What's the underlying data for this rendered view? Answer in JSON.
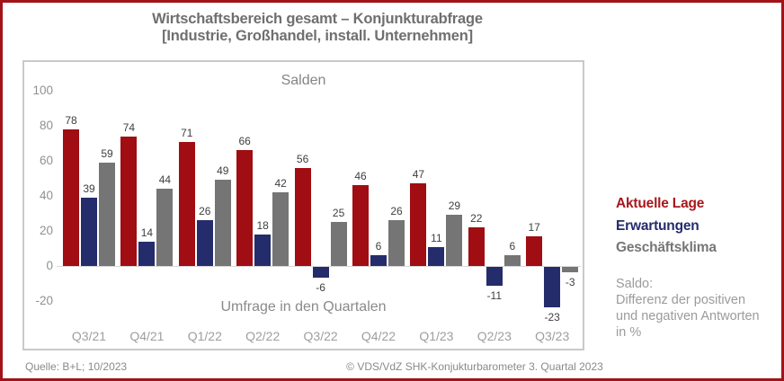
{
  "frame": {
    "border_color": "#a11318"
  },
  "title": {
    "line1": "Wirtschaftsbereich gesamt – Konjunkturabfrage",
    "line2": "[Industrie, Großhandel, install. Unternehmen]"
  },
  "chart_data": {
    "type": "bar",
    "title": "Salden",
    "xlabel": "Umfrage in den Quartalen",
    "categories": [
      "Q3/21",
      "Q4/21",
      "Q1/22",
      "Q2/22",
      "Q3/22",
      "Q4/22",
      "Q1/23",
      "Q2/23",
      "Q3/23"
    ],
    "series": [
      {
        "name": "Aktuelle Lage",
        "color": "#a00d12",
        "values": [
          78,
          74,
          71,
          66,
          56,
          46,
          47,
          22,
          17
        ]
      },
      {
        "name": "Erwartungen",
        "color": "#252c6b",
        "values": [
          39,
          14,
          26,
          18,
          -6,
          6,
          11,
          -11,
          -23
        ]
      },
      {
        "name": "Geschäftsklima",
        "color": "#757575",
        "values": [
          59,
          44,
          49,
          42,
          25,
          26,
          29,
          6,
          -3
        ]
      }
    ],
    "ylim": [
      -20,
      100
    ],
    "yticks": [
      100,
      80,
      60,
      40,
      20,
      0,
      -20
    ],
    "grid": false,
    "legend_position": "right",
    "data_labels": true
  },
  "legend": {
    "items": [
      {
        "label": "Aktuelle Lage",
        "color": "#a8171d"
      },
      {
        "label": "Erwartungen",
        "color": "#252c6b"
      },
      {
        "label": "Geschäftsklima",
        "color": "#767676"
      }
    ],
    "note_lines": [
      "Saldo:",
      "Differenz der positiven",
      "und negativen Antworten",
      "in %"
    ]
  },
  "footer": {
    "source": "Quelle: B+L; 10/2023",
    "copyright": "© VDS/VdZ SHK-Konjukturbarometer 3. Quartal 2023"
  }
}
